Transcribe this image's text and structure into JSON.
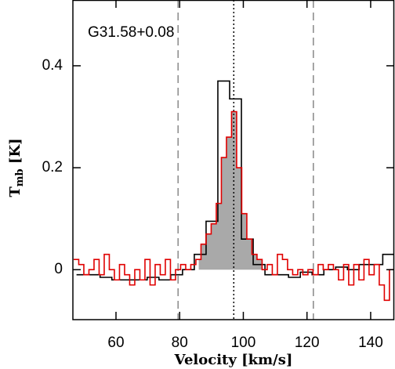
{
  "chart_data": {
    "type": "step",
    "annotation": "G31.58+0.08",
    "xlabel": "Velocity [km/s]",
    "ylabel": "T",
    "ylabel_sub": "mb",
    "ylabel_unit": " [K]",
    "xlim": [
      46.46,
      147.4
    ],
    "ylim": [
      -0.098,
      0.529
    ],
    "xticks": [
      60,
      80,
      100,
      120,
      140
    ],
    "yticks": [
      0,
      0.2,
      0.4
    ],
    "fill_range": [
      86,
      106
    ],
    "fill_color": "#a9a9a9",
    "vlines": [
      {
        "x": 79.5,
        "style": "dashed",
        "color": "#888888"
      },
      {
        "x": 97,
        "style": "dotted",
        "color": "#000000"
      },
      {
        "x": 122,
        "style": "dashed",
        "color": "#888888"
      }
    ],
    "series": [
      {
        "name": "black",
        "color": "#000000",
        "x": [
          49.45,
          53.15,
          56.85,
          60.55,
          64.25,
          67.95,
          71.65,
          75.35,
          79.05,
          82.75,
          86.45,
          90.15,
          93.85,
          97.55,
          101.25,
          104.95,
          108.65,
          112.35,
          116.05,
          119.75,
          123.45,
          127.15,
          130.85,
          134.55,
          138.25,
          141.95,
          145.65
        ],
        "values": [
          -0.01,
          -0.01,
          -0.015,
          -0.02,
          -0.02,
          -0.02,
          -0.015,
          -0.02,
          -0.01,
          0.0,
          0.03,
          0.095,
          0.37,
          0.335,
          0.06,
          0.01,
          -0.01,
          -0.01,
          -0.015,
          -0.005,
          -0.01,
          0.0,
          0.005,
          0.0,
          0.01,
          0.01,
          0.03
        ]
      },
      {
        "name": "red",
        "color": "#e00000",
        "x": [
          47.5,
          49.1,
          50.7,
          52.3,
          53.9,
          55.5,
          57.1,
          58.7,
          60.3,
          61.9,
          63.5,
          65.1,
          66.7,
          68.3,
          69.9,
          71.5,
          73.1,
          74.7,
          76.3,
          77.9,
          79.5,
          81.1,
          82.7,
          84.3,
          85.9,
          87.5,
          89.1,
          90.7,
          92.3,
          93.9,
          95.5,
          97.1,
          98.7,
          100.3,
          101.9,
          103.5,
          105.1,
          106.7,
          108.3,
          109.9,
          111.5,
          113.1,
          114.7,
          116.3,
          117.9,
          119.5,
          121.1,
          122.7,
          124.3,
          125.9,
          127.5,
          129.1,
          130.7,
          132.3,
          133.9,
          135.5,
          137.1,
          138.7,
          140.3,
          141.9,
          143.5,
          145.1,
          146.7
        ],
        "values": [
          0.02,
          0.01,
          -0.01,
          0.0,
          0.02,
          -0.01,
          0.03,
          0.0,
          -0.02,
          0.01,
          -0.01,
          -0.03,
          0.0,
          -0.02,
          0.02,
          -0.03,
          0.01,
          -0.01,
          0.02,
          -0.02,
          0.0,
          0.01,
          0.0,
          0.01,
          0.02,
          0.05,
          0.07,
          0.09,
          0.13,
          0.22,
          0.26,
          0.31,
          0.2,
          0.11,
          0.06,
          0.03,
          0.02,
          0.0,
          0.01,
          -0.01,
          0.03,
          0.02,
          0.0,
          -0.01,
          0.0,
          -0.01,
          0.0,
          -0.01,
          0.01,
          0.0,
          0.01,
          0.0,
          -0.02,
          0.01,
          -0.03,
          0.01,
          -0.02,
          0.02,
          -0.01,
          0.01,
          -0.03,
          -0.06,
          0.0
        ]
      }
    ]
  }
}
